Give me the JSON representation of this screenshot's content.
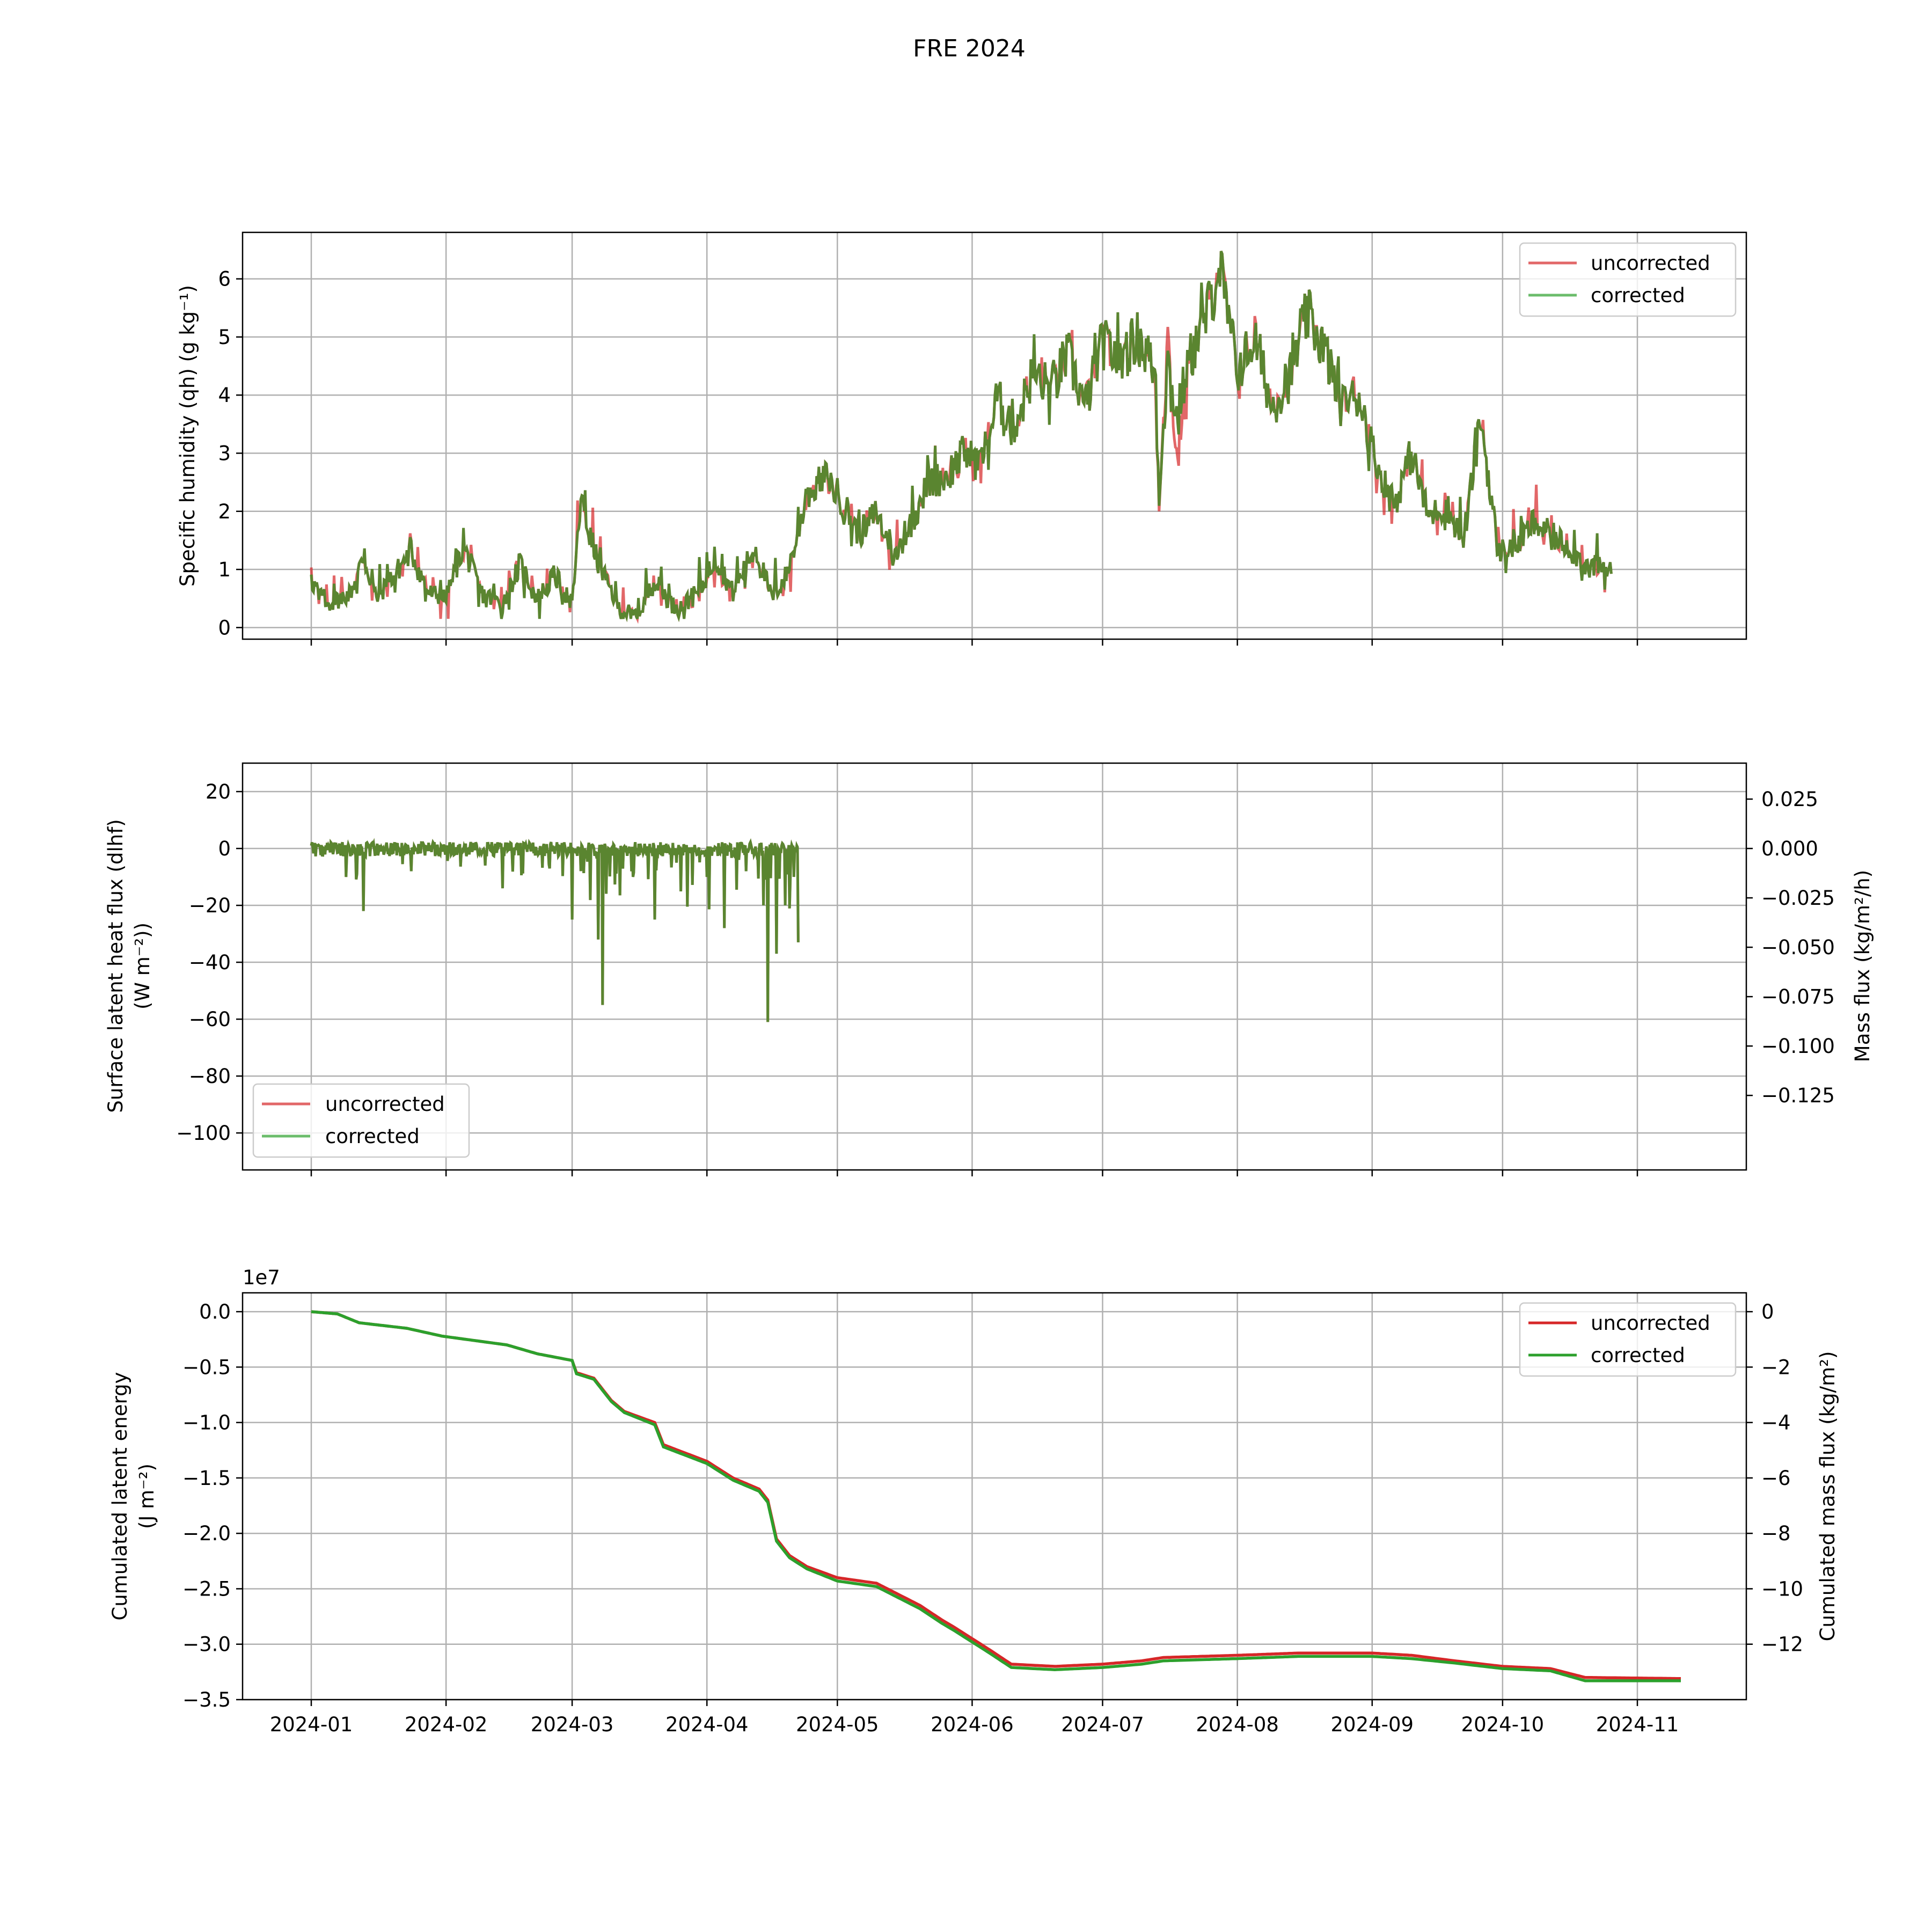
{
  "title": "FRE 2024",
  "colors": {
    "uncorrected": "#d62728",
    "corrected": "#2ca02c",
    "overlap": "#5a8530",
    "grid": "#b0b0b0"
  },
  "legend": {
    "uncorrected": "uncorrected",
    "corrected": "corrected"
  },
  "x_ticks": [
    "2024-01",
    "2024-02",
    "2024-03",
    "2024-04",
    "2024-05",
    "2024-06",
    "2024-07",
    "2024-08",
    "2024-09",
    "2024-10",
    "2024-11"
  ],
  "panel1": {
    "ylabel": "Specific humidity (qh) (g kg⁻¹)",
    "y_ticks": [
      "0",
      "1",
      "2",
      "3",
      "4",
      "5",
      "6"
    ],
    "legend_position": "top-right"
  },
  "panel2": {
    "ylabel_line1": "Surface latent heat flux (dlhf)",
    "ylabel_line2": "(W m⁻²))",
    "ylabel_right": "Mass flux (kg/m²/h)",
    "y_ticks": [
      "20",
      "0",
      "−20",
      "−40",
      "−60",
      "−80",
      "−100"
    ],
    "y_ticks_right": [
      "0.025",
      "0.000",
      "−0.025",
      "−0.050",
      "−0.075",
      "−0.100",
      "−0.125"
    ],
    "legend_position": "bottom-left"
  },
  "panel3": {
    "ylabel_line1": "Cumulated latent energy",
    "ylabel_line2": "(J m⁻²)",
    "ylabel_right": "Cumulated mass flux (kg/m²)",
    "offset_text": "1e7",
    "y_ticks": [
      "0.0",
      "−0.5",
      "−1.0",
      "−1.5",
      "−2.0",
      "−2.5",
      "−3.0",
      "−3.5"
    ],
    "y_ticks_right": [
      "0",
      "−2",
      "−4",
      "−6",
      "−8",
      "−10",
      "−12"
    ],
    "legend_position": "top-right"
  },
  "chart_data": [
    {
      "type": "line",
      "ylabel": "Specific humidity (qh) (g kg⁻¹)",
      "ylim": [
        -0.2,
        6.8
      ],
      "x_range": [
        "2024-01-01",
        "2024-10-26"
      ],
      "grid": true,
      "series": [
        {
          "name": "uncorrected",
          "x": [
            "2024-01-01",
            "2024-01-05",
            "2024-01-10",
            "2024-01-13",
            "2024-01-16",
            "2024-01-20",
            "2024-01-24",
            "2024-01-28",
            "2024-02-01",
            "2024-02-05",
            "2024-02-09",
            "2024-02-14",
            "2024-02-18",
            "2024-02-22",
            "2024-02-26",
            "2024-03-01",
            "2024-03-03",
            "2024-03-06",
            "2024-03-09",
            "2024-03-12",
            "2024-03-16",
            "2024-03-20",
            "2024-03-25",
            "2024-03-30",
            "2024-04-03",
            "2024-04-07",
            "2024-04-12",
            "2024-04-16",
            "2024-04-20",
            "2024-04-24",
            "2024-04-28",
            "2024-05-02",
            "2024-05-06",
            "2024-05-10",
            "2024-05-14",
            "2024-05-18",
            "2024-05-22",
            "2024-05-26",
            "2024-05-30",
            "2024-06-03",
            "2024-06-07",
            "2024-06-11",
            "2024-06-15",
            "2024-06-19",
            "2024-06-23",
            "2024-06-27",
            "2024-07-01",
            "2024-07-05",
            "2024-07-09",
            "2024-07-13",
            "2024-07-14",
            "2024-07-16",
            "2024-07-18",
            "2024-07-21",
            "2024-07-25",
            "2024-07-28",
            "2024-08-01",
            "2024-08-05",
            "2024-08-09",
            "2024-08-13",
            "2024-08-17",
            "2024-08-21",
            "2024-08-25",
            "2024-08-29",
            "2024-09-02",
            "2024-09-06",
            "2024-09-10",
            "2024-09-14",
            "2024-09-18",
            "2024-09-22",
            "2024-09-26",
            "2024-09-30",
            "2024-10-04",
            "2024-10-08",
            "2024-10-12",
            "2024-10-16",
            "2024-10-20",
            "2024-10-24",
            "2024-10-26"
          ],
          "values": [
            0.8,
            0.4,
            0.6,
            1.2,
            0.5,
            0.9,
            1.3,
            0.6,
            0.5,
            1.4,
            0.6,
            0.4,
            1.1,
            0.5,
            0.9,
            0.4,
            2.2,
            1.3,
            0.8,
            0.3,
            0.2,
            0.8,
            0.3,
            0.6,
            1.2,
            0.6,
            1.4,
            0.5,
            1.0,
            2.3,
            2.6,
            2.2,
            1.6,
            2.0,
            1.2,
            1.8,
            2.5,
            2.6,
            3.0,
            2.8,
            3.9,
            3.5,
            4.4,
            4.1,
            4.7,
            3.8,
            4.9,
            4.6,
            5.0,
            4.4,
            2.2,
            5.0,
            2.9,
            4.6,
            5.4,
            6.2,
            4.4,
            5.0,
            3.8,
            4.3,
            5.4,
            4.8,
            3.8,
            4.0,
            2.8,
            2.1,
            3.0,
            1.9,
            2.1,
            1.5,
            3.6,
            1.3,
            1.4,
            1.8,
            1.6,
            1.4,
            1.1,
            1.0,
            1.0
          ]
        },
        {
          "name": "corrected",
          "x": [
            "2024-01-01",
            "2024-01-05",
            "2024-01-10",
            "2024-01-13",
            "2024-01-16",
            "2024-01-20",
            "2024-01-24",
            "2024-01-28",
            "2024-02-01",
            "2024-02-05",
            "2024-02-09",
            "2024-02-14",
            "2024-02-18",
            "2024-02-22",
            "2024-02-26",
            "2024-03-01",
            "2024-03-03",
            "2024-03-06",
            "2024-03-09",
            "2024-03-12",
            "2024-03-16",
            "2024-03-20",
            "2024-03-25",
            "2024-03-30",
            "2024-04-03",
            "2024-04-07",
            "2024-04-12",
            "2024-04-16",
            "2024-04-20",
            "2024-04-24",
            "2024-04-28",
            "2024-05-02",
            "2024-05-06",
            "2024-05-10",
            "2024-05-14",
            "2024-05-18",
            "2024-05-22",
            "2024-05-26",
            "2024-05-30",
            "2024-06-03",
            "2024-06-07",
            "2024-06-11",
            "2024-06-15",
            "2024-06-19",
            "2024-06-23",
            "2024-06-27",
            "2024-07-01",
            "2024-07-05",
            "2024-07-09",
            "2024-07-13",
            "2024-07-14",
            "2024-07-16",
            "2024-07-18",
            "2024-07-21",
            "2024-07-25",
            "2024-07-28",
            "2024-08-01",
            "2024-08-05",
            "2024-08-09",
            "2024-08-13",
            "2024-08-17",
            "2024-08-21",
            "2024-08-25",
            "2024-08-29",
            "2024-09-02",
            "2024-09-06",
            "2024-09-10",
            "2024-09-14",
            "2024-09-18",
            "2024-09-22",
            "2024-09-26",
            "2024-09-30",
            "2024-10-04",
            "2024-10-08",
            "2024-10-12",
            "2024-10-16",
            "2024-10-20",
            "2024-10-24",
            "2024-10-26"
          ],
          "values": [
            0.8,
            0.4,
            0.6,
            1.2,
            0.5,
            0.9,
            1.3,
            0.6,
            0.5,
            1.4,
            0.6,
            0.4,
            1.1,
            0.5,
            0.9,
            0.4,
            2.2,
            1.3,
            0.8,
            0.3,
            0.2,
            0.8,
            0.3,
            0.6,
            1.2,
            0.6,
            1.4,
            0.5,
            1.0,
            2.3,
            2.6,
            2.2,
            1.6,
            2.0,
            1.2,
            1.8,
            2.5,
            2.6,
            3.0,
            2.8,
            3.9,
            3.5,
            4.4,
            4.1,
            4.7,
            3.8,
            4.9,
            4.6,
            5.0,
            4.4,
            2.3,
            4.6,
            3.6,
            4.6,
            5.4,
            6.2,
            4.4,
            5.0,
            3.8,
            4.3,
            5.4,
            4.8,
            3.8,
            4.0,
            2.8,
            2.1,
            3.0,
            1.9,
            2.1,
            1.5,
            3.6,
            1.3,
            1.4,
            1.8,
            1.6,
            1.4,
            1.1,
            1.0,
            1.0
          ]
        }
      ]
    },
    {
      "type": "line",
      "ylabel": "Surface latent heat flux (dlhf) (W m⁻²))",
      "ylabel_right": "Mass flux (kg/m²/h)",
      "ylim": [
        -113,
        30
      ],
      "x_range": [
        "2024-01-01",
        "2024-04-22"
      ],
      "grid": true,
      "series": [
        {
          "name": "corrected",
          "x": [
            "2024-01-01",
            "2024-01-06",
            "2024-01-12",
            "2024-01-13",
            "2024-01-18",
            "2024-01-24",
            "2024-02-01",
            "2024-02-10",
            "2024-02-14",
            "2024-02-20",
            "2024-02-28",
            "2024-03-01",
            "2024-03-02",
            "2024-03-05",
            "2024-03-07",
            "2024-03-08",
            "2024-03-10",
            "2024-03-15",
            "2024-03-20",
            "2024-03-25",
            "2024-04-01",
            "2024-04-05",
            "2024-04-10",
            "2024-04-13",
            "2024-04-14",
            "2024-04-15",
            "2024-04-17",
            "2024-04-19",
            "2024-04-21",
            "2024-04-22"
          ],
          "values": [
            1,
            -2,
            0,
            -22,
            0,
            -8,
            0,
            -6,
            -14,
            0,
            0,
            -25,
            -1,
            0,
            -32,
            -55,
            0,
            -10,
            -25,
            -5,
            -10,
            -28,
            -8,
            0,
            -20,
            -61,
            -37,
            -20,
            -10,
            -33
          ]
        }
      ]
    },
    {
      "type": "line",
      "ylabel": "Cumulated latent energy (J m⁻²)",
      "ylabel_right": "Cumulated mass flux (kg/m²)",
      "units_multiplier": "1e7",
      "ylim": [
        -3.5,
        0.17
      ],
      "x_range": [
        "2024-01-01",
        "2024-11-11"
      ],
      "grid": true,
      "series": [
        {
          "name": "uncorrected",
          "x": [
            "2024-01-01",
            "2024-01-07",
            "2024-01-12",
            "2024-01-23",
            "2024-01-31",
            "2024-02-15",
            "2024-02-22",
            "2024-03-01",
            "2024-03-02",
            "2024-03-06",
            "2024-03-10",
            "2024-03-13",
            "2024-03-20",
            "2024-03-22",
            "2024-04-01",
            "2024-04-07",
            "2024-04-13",
            "2024-04-15",
            "2024-04-17",
            "2024-04-20",
            "2024-04-24",
            "2024-05-01",
            "2024-05-10",
            "2024-05-15",
            "2024-05-20",
            "2024-05-25",
            "2024-05-28",
            "2024-06-01",
            "2024-06-05",
            "2024-06-10",
            "2024-06-20",
            "2024-07-01",
            "2024-07-10",
            "2024-07-15",
            "2024-08-01",
            "2024-08-15",
            "2024-09-01",
            "2024-09-10",
            "2024-09-20",
            "2024-10-01",
            "2024-10-12",
            "2024-10-20",
            "2024-11-11"
          ],
          "values": [
            0.0,
            -0.02,
            -0.1,
            -0.15,
            -0.22,
            -0.3,
            -0.38,
            -0.44,
            -0.55,
            -0.6,
            -0.8,
            -0.9,
            -1.0,
            -1.2,
            -1.35,
            -1.5,
            -1.6,
            -1.7,
            -2.05,
            -2.2,
            -2.3,
            -2.4,
            -2.45,
            -2.55,
            -2.65,
            -2.78,
            -2.85,
            -2.95,
            -3.05,
            -3.18,
            -3.2,
            -3.18,
            -3.15,
            -3.12,
            -3.1,
            -3.08,
            -3.08,
            -3.1,
            -3.15,
            -3.2,
            -3.22,
            -3.3,
            -3.31
          ]
        },
        {
          "name": "corrected",
          "x": [
            "2024-01-01",
            "2024-01-07",
            "2024-01-12",
            "2024-01-23",
            "2024-01-31",
            "2024-02-15",
            "2024-02-22",
            "2024-03-01",
            "2024-03-02",
            "2024-03-06",
            "2024-03-10",
            "2024-03-13",
            "2024-03-20",
            "2024-03-22",
            "2024-04-01",
            "2024-04-07",
            "2024-04-13",
            "2024-04-15",
            "2024-04-17",
            "2024-04-20",
            "2024-04-24",
            "2024-05-01",
            "2024-05-10",
            "2024-05-15",
            "2024-05-20",
            "2024-05-25",
            "2024-05-28",
            "2024-06-01",
            "2024-06-05",
            "2024-06-10",
            "2024-06-20",
            "2024-07-01",
            "2024-07-10",
            "2024-07-15",
            "2024-08-01",
            "2024-08-15",
            "2024-09-01",
            "2024-09-10",
            "2024-09-20",
            "2024-10-01",
            "2024-10-12",
            "2024-10-20",
            "2024-11-11"
          ],
          "values": [
            0.0,
            -0.02,
            -0.1,
            -0.15,
            -0.22,
            -0.3,
            -0.38,
            -0.44,
            -0.56,
            -0.61,
            -0.81,
            -0.91,
            -1.02,
            -1.22,
            -1.37,
            -1.52,
            -1.62,
            -1.72,
            -2.07,
            -2.22,
            -2.32,
            -2.43,
            -2.48,
            -2.58,
            -2.68,
            -2.81,
            -2.88,
            -2.98,
            -3.08,
            -3.21,
            -3.23,
            -3.21,
            -3.18,
            -3.15,
            -3.13,
            -3.11,
            -3.11,
            -3.13,
            -3.17,
            -3.22,
            -3.24,
            -3.33,
            -3.33
          ]
        }
      ]
    }
  ]
}
